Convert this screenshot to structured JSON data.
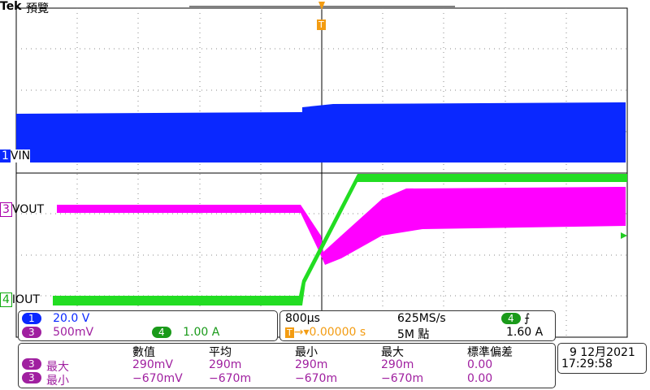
{
  "header": {
    "brand": "Tek",
    "mode": "預覽"
  },
  "trigger_marker": "T",
  "channels": [
    {
      "number": "1",
      "label": "VIN",
      "scale": "20.0 V"
    },
    {
      "number": "3",
      "label": "VOUT",
      "scale": "500mV"
    },
    {
      "number": "4",
      "label": "IOUT",
      "scale": "1.00 A"
    }
  ],
  "timebase": {
    "time_per_div": "800µs",
    "sample_rate": "625MS/s",
    "trigger_position": "0.00000 s",
    "record_length": "5M 點",
    "trigger_channel": "4",
    "trigger_level": "1.60 A"
  },
  "measurements": {
    "headers": [
      "數值",
      "平均",
      "最小",
      "最大",
      "標準偏差"
    ],
    "rows": [
      {
        "channel": "3",
        "name": "最大",
        "cells": [
          "290mV",
          "290m",
          "290m",
          "290m",
          "0.00"
        ]
      },
      {
        "channel": "3",
        "name": "最小",
        "cells": [
          "−670mV",
          "−670m",
          "−670m",
          "−670m",
          "0.00"
        ]
      }
    ]
  },
  "datetime": {
    "date": "9 12月2021",
    "time": "17:29:58"
  }
}
